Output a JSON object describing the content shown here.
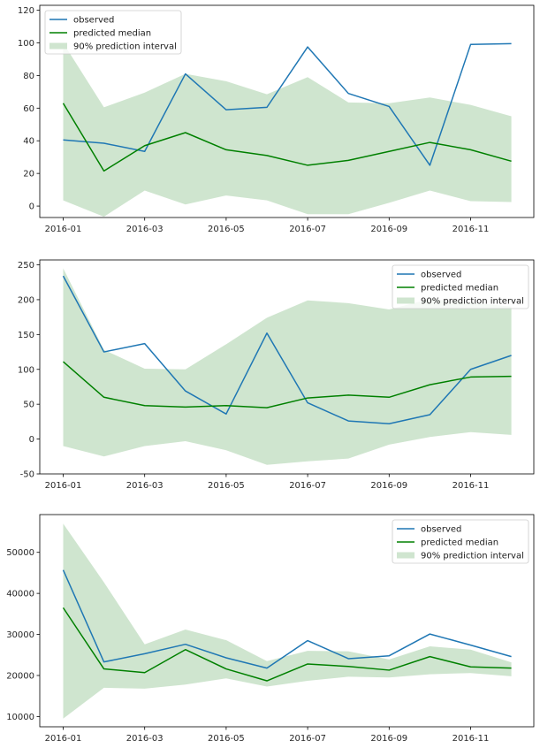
{
  "colors": {
    "observed": "#1f77b4",
    "median": "#008000",
    "interval": "#cfe5cf",
    "axis": "#000000",
    "legend_border": "#cccccc"
  },
  "chart_data": [
    {
      "type": "line",
      "x": [
        "2016-01",
        "2016-02",
        "2016-03",
        "2016-04",
        "2016-05",
        "2016-06",
        "2016-07",
        "2016-08",
        "2016-09",
        "2016-10",
        "2016-11",
        "2016-12"
      ],
      "xticks": [
        "2016-01",
        "2016-03",
        "2016-05",
        "2016-07",
        "2016-09",
        "2016-11"
      ],
      "ylim": [
        -7,
        123
      ],
      "yticks": [
        0,
        20,
        40,
        60,
        80,
        100,
        120
      ],
      "legend_position": "upper-left",
      "grid": false,
      "series": [
        {
          "name": "observed",
          "kind": "line",
          "values": [
            40.5,
            38.5,
            33.5,
            81,
            59,
            60.5,
            97.5,
            69,
            61,
            25,
            99,
            99.5
          ]
        },
        {
          "name": "predicted median",
          "kind": "line",
          "values": [
            63,
            21.5,
            37,
            45,
            34.5,
            31,
            25,
            28,
            33.5,
            39,
            34.5,
            27.5
          ]
        },
        {
          "name": "90% prediction interval",
          "kind": "band",
          "lower": [
            3.5,
            -6.5,
            9.5,
            1,
            6.5,
            3.5,
            -5,
            -5,
            2,
            9.5,
            3,
            2.5
          ],
          "upper": [
            100,
            60.5,
            69.5,
            81,
            76.5,
            68.5,
            79,
            63.5,
            63,
            66.5,
            62,
            55
          ]
        }
      ]
    },
    {
      "type": "line",
      "x": [
        "2016-01",
        "2016-02",
        "2016-03",
        "2016-04",
        "2016-05",
        "2016-06",
        "2016-07",
        "2016-08",
        "2016-09",
        "2016-10",
        "2016-11",
        "2016-12"
      ],
      "xticks": [
        "2016-01",
        "2016-03",
        "2016-05",
        "2016-07",
        "2016-09",
        "2016-11"
      ],
      "ylim": [
        -50,
        257
      ],
      "yticks": [
        -50,
        0,
        50,
        100,
        150,
        200,
        250
      ],
      "legend_position": "upper-right",
      "grid": false,
      "series": [
        {
          "name": "observed",
          "kind": "line",
          "values": [
            234,
            125,
            137,
            69,
            36,
            152,
            52,
            26,
            22,
            35,
            100,
            120
          ]
        },
        {
          "name": "predicted median",
          "kind": "line",
          "values": [
            111,
            60,
            48,
            46,
            48,
            45,
            59,
            63,
            60,
            78,
            89,
            90
          ]
        },
        {
          "name": "90% prediction interval",
          "kind": "band",
          "lower": [
            -10,
            -25,
            -10,
            -3,
            -16,
            -37,
            -32,
            -28,
            -8,
            3,
            10,
            6
          ],
          "upper": [
            245,
            128,
            101,
            100,
            136,
            174,
            199,
            195,
            186,
            201,
            196,
            190
          ]
        }
      ]
    },
    {
      "type": "line",
      "x": [
        "2016-01",
        "2016-02",
        "2016-03",
        "2016-04",
        "2016-05",
        "2016-06",
        "2016-07",
        "2016-08",
        "2016-09",
        "2016-10",
        "2016-11",
        "2016-12"
      ],
      "xticks": [
        "2016-01",
        "2016-03",
        "2016-05",
        "2016-07",
        "2016-09",
        "2016-11"
      ],
      "ylim": [
        7500,
        59200
      ],
      "yticks": [
        10000,
        20000,
        30000,
        40000,
        50000
      ],
      "legend_position": "upper-right",
      "grid": false,
      "series": [
        {
          "name": "observed",
          "kind": "line",
          "values": [
            45700,
            23300,
            25300,
            27600,
            24300,
            21800,
            28500,
            24100,
            24800,
            30100,
            27400,
            24600
          ]
        },
        {
          "name": "predicted median",
          "kind": "line",
          "values": [
            36500,
            21600,
            20700,
            26300,
            21600,
            18700,
            22800,
            22200,
            21300,
            24600,
            22100,
            21800
          ]
        },
        {
          "name": "90% prediction interval",
          "kind": "band",
          "lower": [
            9500,
            17000,
            16800,
            17800,
            19300,
            17300,
            18700,
            19700,
            19500,
            20300,
            20600,
            19800
          ],
          "upper": [
            57000,
            42700,
            27600,
            31200,
            28600,
            23500,
            26000,
            25900,
            23900,
            27100,
            26300,
            23200
          ]
        }
      ]
    }
  ]
}
